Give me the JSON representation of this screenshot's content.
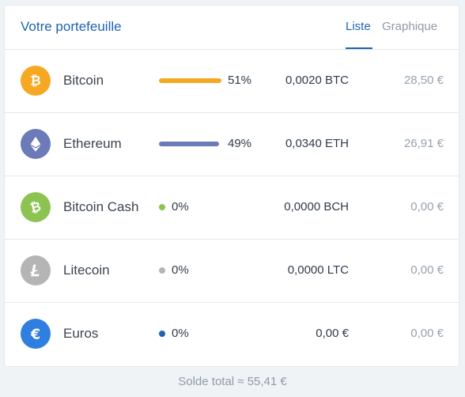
{
  "header": {
    "title": "Votre portefeuille",
    "tabs": [
      {
        "label": "Liste",
        "active": true
      },
      {
        "label": "Graphique",
        "active": false
      }
    ]
  },
  "colors": {
    "accent": "#1e63b0",
    "btc": "#f7a823",
    "eth": "#6c7aba",
    "bch": "#8dc351",
    "ltc": "#b5b5b5",
    "eur": "#2f7fe0"
  },
  "assets": [
    {
      "name": "Bitcoin",
      "icon": "bitcoin-icon",
      "pct": "51%",
      "share": 0.51,
      "amount": "0,0020 BTC",
      "value": "28,50 €"
    },
    {
      "name": "Ethereum",
      "icon": "ethereum-icon",
      "pct": "49%",
      "share": 0.49,
      "amount": "0,0340 ETH",
      "value": "26,91 €"
    },
    {
      "name": "Bitcoin Cash",
      "icon": "bitcoin-cash-icon",
      "pct": "0%",
      "share": 0,
      "amount": "0,0000 BCH",
      "value": "0,00 €"
    },
    {
      "name": "Litecoin",
      "icon": "litecoin-icon",
      "pct": "0%",
      "share": 0,
      "amount": "0,0000 LTC",
      "value": "0,00 €"
    },
    {
      "name": "Euros",
      "icon": "euro-icon",
      "pct": "0%",
      "share": 0,
      "amount": "0,00 €",
      "value": "0,00 €"
    }
  ],
  "footer": {
    "total": "Solde total ≈ 55,41 €"
  }
}
